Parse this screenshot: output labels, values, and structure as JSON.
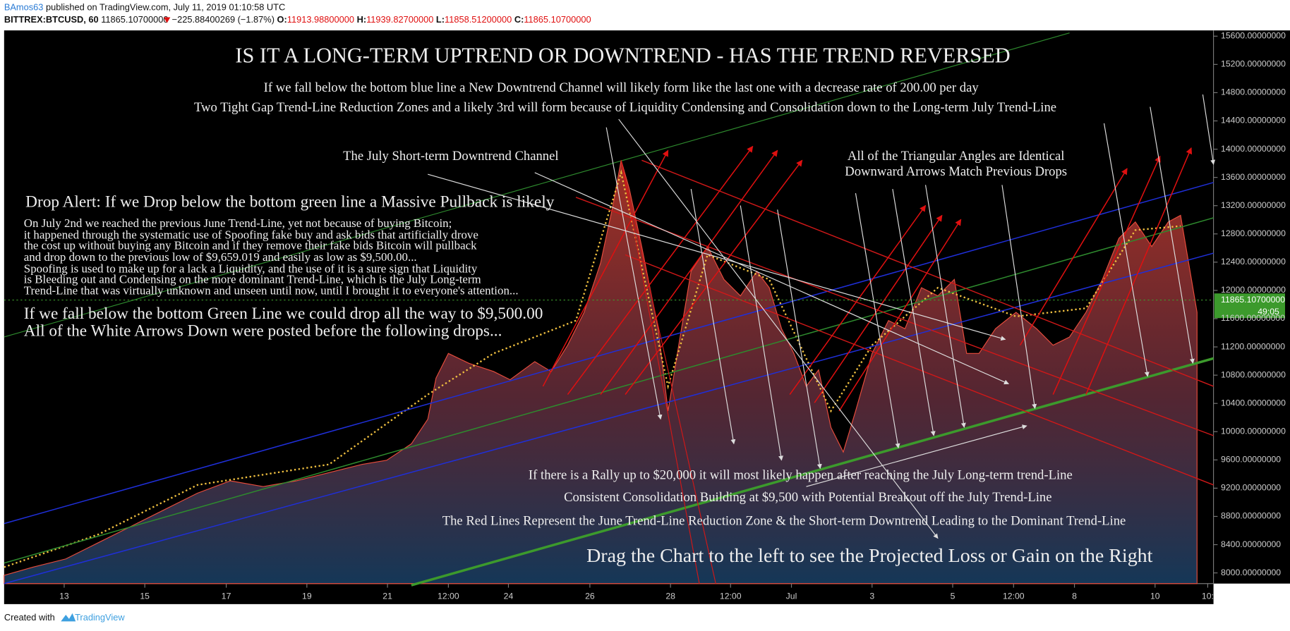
{
  "header": {
    "author": "BAmos63",
    "published": "published on TradingView.com, July 11, 2019 01:10:58 UTC",
    "symbol": "BITTREX:BTCUSD, 60",
    "last": "11865.10700000",
    "change": "−225.88400269 (−1.87%)",
    "open_label": "O:",
    "open": "11913.98800000",
    "high_label": "H:",
    "high": "11939.82700000",
    "low_label": "L:",
    "low": "11858.51200000",
    "close_label": "C:",
    "close": "11865.10700000"
  },
  "chart": {
    "title": "IS IT A LONG-TERM UPTREND OR DOWNTREND - HAS THE TREND REVERSED",
    "annotations": [
      "If we fall below the bottom blue line a New Downtrend Channel will likely form like the last one with a decrease rate of 200.00 per day",
      "Two Tight Gap Trend-Line Reduction Zones and a likely 3rd will form because of Liquidity Condensing and Consolidation down to the Long-term July Trend-Line",
      "The July Short-term Downtrend Channel",
      "All of the Triangular Angles are Identical",
      "Downward Arrows Match Previous Drops",
      "Drop Alert: If we Drop below the bottom green line a Massive Pullback is likely",
      "On July 2nd we reached the previous June Trend-Line, yet not because of buying Bitcoin;",
      "it happened through the systematic use of Spoofing fake buy and ask bids that artificially drove",
      "the cost up without buying any Bitcoin and if they remove their fake bids Bitcoin will pullback",
      "and drop down to the previous low of $9,659.019 and easily as low as $9,500.00...",
      "Spoofing is used to make up for a lack a Liquidity, and the use of it is a sure sign that Liquidity",
      "is Bleeding out and Condensing on the more dominant Trend-Line, which is the July Long-term",
      "Trend-Line that was virtually unknown and unseen until now, until I brought it to everyone's attention...",
      "If we fall below the bottom Green Line we could drop all the way to $9,500.00",
      "All of the White Arrows Down were posted before the following drops...",
      "If there is a Rally up to $20,000 it will most likely happen after reaching the July Long-term trend-Line",
      "Consistent Consolidation Building at $9,500 with Potential Breakout off the July Trend-Line",
      "The Red Lines Represent the June Trend-Line Reduction Zone & the Short-term Downtrend Leading to the Dominant Trend-Line",
      "Drag the Chart to the left to see the Projected Loss or Gain on the Right"
    ],
    "price_axis": [
      "15600.00000000",
      "15200.00000000",
      "14800.00000000",
      "14400.00000000",
      "14000.00000000",
      "13600.00000000",
      "13200.00000000",
      "12800.00000000",
      "12400.00000000",
      "12000.00000000",
      "11600.00000000",
      "11200.00000000",
      "10800.00000000",
      "10400.00000000",
      "10000.00000000",
      "9600.00000000",
      "9200.00000000",
      "8800.00000000",
      "8400.00000000",
      "8000.00000000"
    ],
    "time_axis": [
      "13",
      "15",
      "17",
      "19",
      "21",
      "12:00",
      "24",
      "26",
      "28",
      "12:00",
      "Jul",
      "3",
      "5",
      "12:00",
      "8",
      "10",
      "10:"
    ],
    "last_price": "11865.10700000",
    "countdown": "49:05"
  },
  "footer": {
    "created_with": "Created with",
    "brand": "TradingView"
  }
}
